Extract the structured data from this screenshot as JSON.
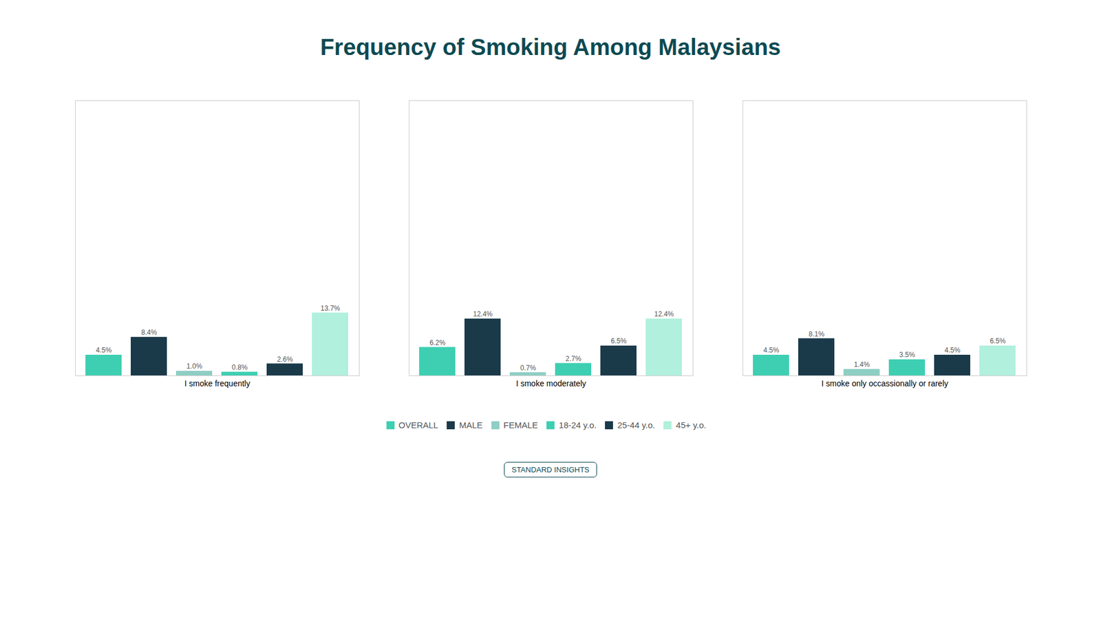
{
  "chart_data": {
    "type": "bar",
    "title": "Frequency of Smoking Among Malaysians",
    "categories": [
      "I smoke frequently",
      "I smoke moderately",
      "I smoke only occassionally or rarely"
    ],
    "series": [
      {
        "name": "OVERALL",
        "color": "#3ecfb2",
        "values": [
          4.5,
          6.2,
          4.5
        ],
        "value_labels": [
          "4.5%",
          "6.2%",
          "4.5%"
        ]
      },
      {
        "name": "MALE",
        "color": "#1a3a4a",
        "values": [
          8.4,
          12.4,
          8.1
        ],
        "value_labels": [
          "8.4%",
          "12.4%",
          "8.1%"
        ]
      },
      {
        "name": "FEMALE",
        "color": "#8ecec4",
        "values": [
          1.0,
          0.7,
          1.4
        ],
        "value_labels": [
          "1.0%",
          "0.7%",
          "1.4%"
        ]
      },
      {
        "name": "18-24 y.o.",
        "color": "#3ecfb2",
        "values": [
          0.8,
          2.7,
          3.5
        ],
        "value_labels": [
          "0.8%",
          "2.7%",
          "3.5%"
        ]
      },
      {
        "name": "25-44 y.o.",
        "color": "#1a3a4a",
        "values": [
          2.6,
          6.5,
          4.5
        ],
        "value_labels": [
          "2.6%",
          "6.5%",
          "4.5%"
        ]
      },
      {
        "name": "45+ y.o.",
        "color": "#b0f0dd",
        "values": [
          13.7,
          12.4,
          6.5
        ],
        "value_labels": [
          "13.7%",
          "12.4%",
          "6.5%"
        ]
      }
    ],
    "ylim": [
      0,
      60
    ],
    "yticks": [],
    "tick_labels": false,
    "grid": false,
    "data_labels": true,
    "legend": "bottom",
    "annotations": [
      "STANDARD INSIGHTS"
    ]
  }
}
